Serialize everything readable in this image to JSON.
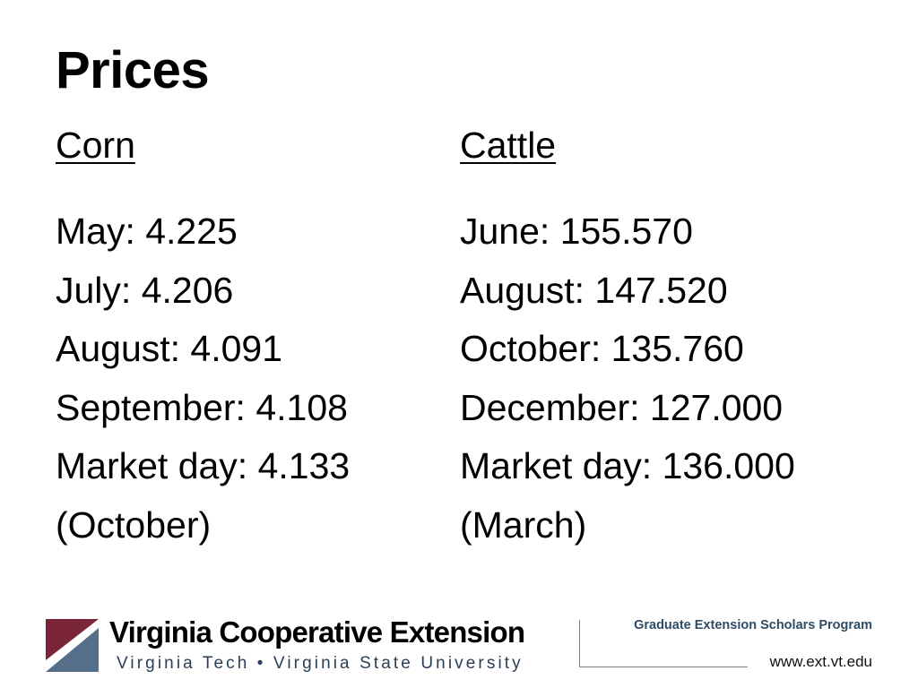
{
  "slide": {
    "title": "Prices"
  },
  "corn": {
    "heading": "Corn",
    "items": [
      "May: 4.225",
      "July: 4.206",
      "August: 4.091",
      "September: 4.108",
      "Market day:  4.133",
      "(October)"
    ]
  },
  "cattle": {
    "heading": "Cattle",
    "items": [
      "June: 155.570",
      "August: 147.520",
      "October: 135.760",
      "December: 127.000",
      "Market day: 136.000",
      "(March)"
    ]
  },
  "footer": {
    "org_name": "Virginia Cooperative Extension",
    "org_subtitle": "Virginia Tech  •  Virginia State University",
    "program": "Graduate Extension Scholars Program",
    "url": "www.ext.vt.edu",
    "colors": {
      "logo_maroon": "#7a2638",
      "logo_slate": "#556f8a",
      "program_text": "#2f4b66"
    }
  }
}
